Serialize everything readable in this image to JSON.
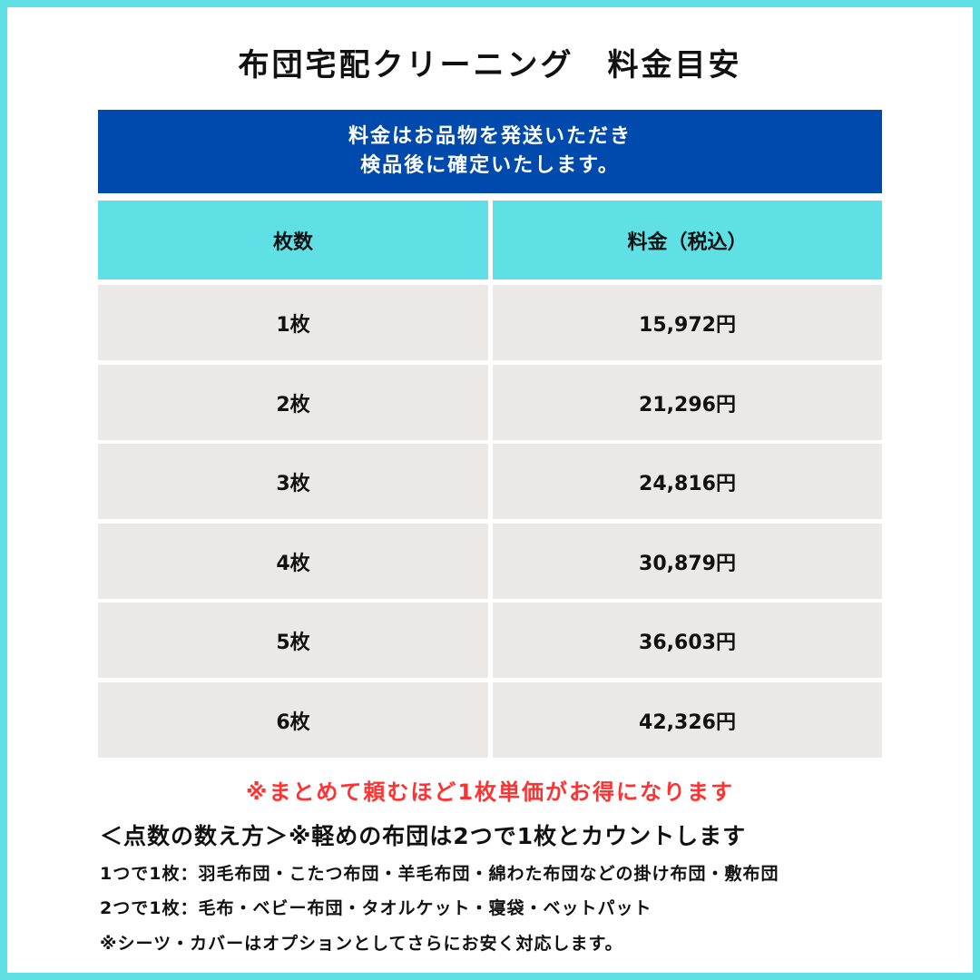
{
  "title": "布団宅配クリーニング　料金目安",
  "banner": {
    "line1": "料金はお品物を発送いただき",
    "line2": "検品後に確定いたします。"
  },
  "table": {
    "headers": [
      "枚数",
      "料金（税込）"
    ],
    "rows": [
      {
        "count": "1枚",
        "price": "15,972円"
      },
      {
        "count": "2枚",
        "price": "21,296円"
      },
      {
        "count": "3枚",
        "price": "24,816円"
      },
      {
        "count": "4枚",
        "price": "30,879円"
      },
      {
        "count": "5枚",
        "price": "36,603円"
      },
      {
        "count": "6枚",
        "price": "42,326円"
      }
    ]
  },
  "discount_note": "※まとめて頼むほど1枚単価がお得になります",
  "counting": {
    "heading": "＜点数の数え方＞※軽めの布団は2つで1枚とカウントします",
    "line1": "1つで1枚：羽毛布団・こたつ布団・羊毛布団・綿わた布団などの掛け布団・敷布団",
    "line2": "2つで1枚：毛布・ベビー布団・タオルケット・寝袋・ベットパット",
    "line3": "※シーツ・カバーはオプションとしてさらにお安く対応します。"
  },
  "colors": {
    "frame": "#5ee0e5",
    "banner": "#004aad",
    "header": "#5ee0e5",
    "row": "#ebe9e7",
    "note": "#ff3131"
  }
}
